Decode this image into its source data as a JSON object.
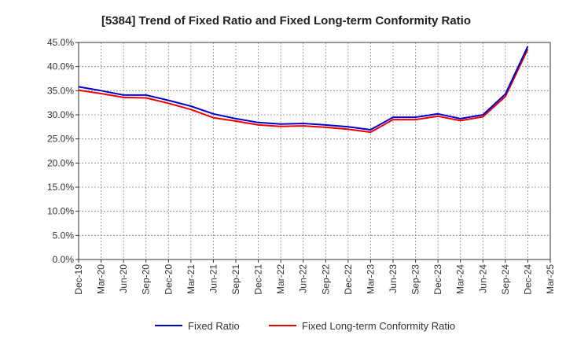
{
  "chart_data": {
    "type": "line",
    "title": "[5384]  Trend of Fixed Ratio and Fixed Long-term Conformity Ratio",
    "xlabel": "",
    "ylabel": "",
    "ylim": [
      0,
      45
    ],
    "y_ticks": [
      "0.0%",
      "5.0%",
      "10.0%",
      "15.0%",
      "20.0%",
      "25.0%",
      "30.0%",
      "35.0%",
      "40.0%",
      "45.0%"
    ],
    "x_ticks": [
      "Dec-19",
      "Mar-20",
      "Jun-20",
      "Sep-20",
      "Dec-20",
      "Mar-21",
      "Jun-21",
      "Sep-21",
      "Dec-21",
      "Mar-22",
      "Jun-22",
      "Sep-22",
      "Dec-22",
      "Mar-23",
      "Jun-23",
      "Sep-23",
      "Dec-23",
      "Mar-24",
      "Jun-24",
      "Sep-24",
      "Dec-24",
      "Mar-25"
    ],
    "grid": true,
    "legend_position": "bottom",
    "categories": [
      "Dec-19",
      "Mar-20",
      "Jun-20",
      "Sep-20",
      "Dec-20",
      "Mar-21",
      "Jun-21",
      "Sep-21",
      "Dec-21",
      "Mar-22",
      "Jun-22",
      "Sep-22",
      "Dec-22",
      "Mar-23",
      "Jun-23",
      "Sep-23",
      "Dec-23",
      "Mar-24",
      "Jun-24",
      "Sep-24",
      "Dec-24"
    ],
    "series": [
      {
        "name": "Fixed Ratio",
        "color": "#0000cc",
        "values": [
          35.8,
          35.0,
          34.1,
          34.1,
          33.0,
          31.8,
          30.2,
          29.2,
          28.4,
          28.1,
          28.2,
          27.9,
          27.5,
          26.9,
          29.5,
          29.5,
          30.2,
          29.2,
          30.0,
          34.3,
          44.2
        ]
      },
      {
        "name": "Fixed Long-term Conformity Ratio",
        "color": "#ee0000",
        "values": [
          35.1,
          34.4,
          33.6,
          33.5,
          32.4,
          31.1,
          29.4,
          28.7,
          27.9,
          27.6,
          27.7,
          27.4,
          27.0,
          26.4,
          29.0,
          29.0,
          29.7,
          28.8,
          29.6,
          33.8,
          43.6
        ]
      }
    ]
  }
}
